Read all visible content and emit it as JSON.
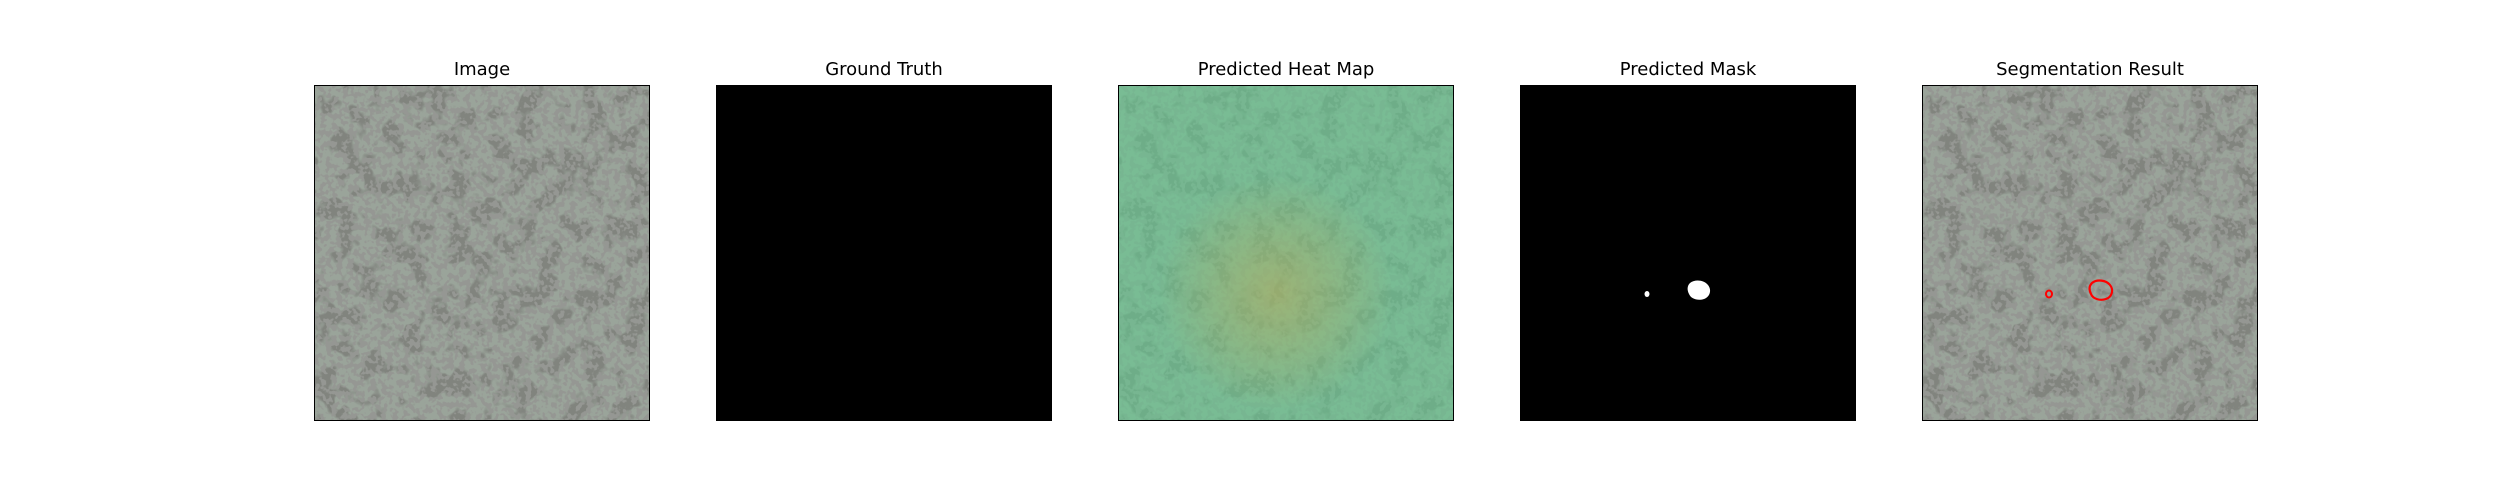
{
  "panels": [
    {
      "title": "Image"
    },
    {
      "title": "Ground Truth"
    },
    {
      "title": "Predicted Heat Map"
    },
    {
      "title": "Predicted Mask"
    },
    {
      "title": "Segmentation Result"
    }
  ],
  "colors": {
    "texture_base": "#9aa49a",
    "texture_spot": "#3a3c38",
    "ground_truth_fill": "#000000",
    "heatmap_tint": "#5fcf8f",
    "heatmap_warm": "#c8a850",
    "mask_background": "#000000",
    "mask_foreground": "#ffffff",
    "contour": "#ff0000"
  }
}
